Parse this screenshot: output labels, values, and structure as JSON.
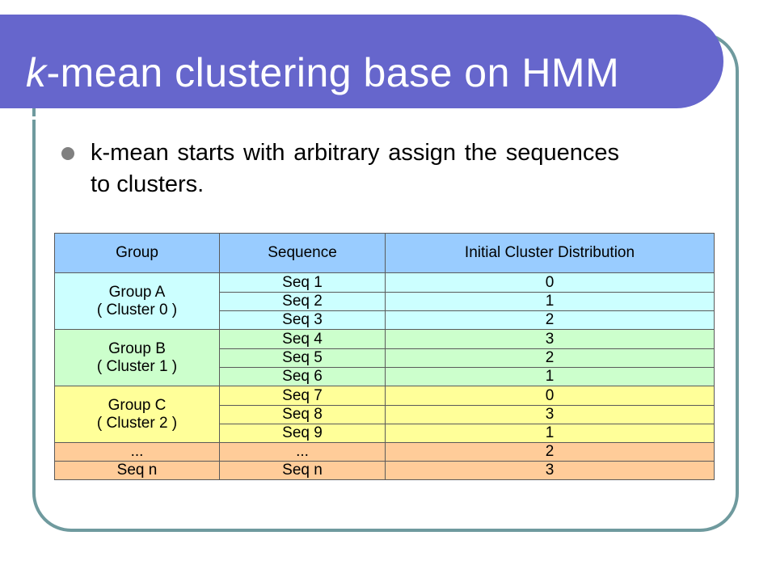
{
  "slide": {
    "title_italic": "k",
    "title_rest": "-mean clustering base on HMM",
    "bullet": "k-mean starts with arbitrary assign the sequences to clusters."
  },
  "table": {
    "headers": [
      "Group",
      "Sequence",
      "Initial Cluster Distribution"
    ],
    "groups": [
      {
        "line1": "Group A",
        "line2": "( Cluster 0 )",
        "color": "#ccffff",
        "rows": [
          {
            "seq": "Seq 1",
            "dist": "0"
          },
          {
            "seq": "Seq 2",
            "dist": "1"
          },
          {
            "seq": "Seq 3",
            "dist": "2"
          }
        ]
      },
      {
        "line1": "Group B",
        "line2": "( Cluster 1 )",
        "color": "#ccffcc",
        "rows": [
          {
            "seq": "Seq 4",
            "dist": "3"
          },
          {
            "seq": "Seq 5",
            "dist": "2"
          },
          {
            "seq": "Seq 6",
            "dist": "1"
          }
        ]
      },
      {
        "line1": "Group C",
        "line2": "( Cluster 2 )",
        "color": "#ffff99",
        "rows": [
          {
            "seq": "Seq 7",
            "dist": "0"
          },
          {
            "seq": "Seq 8",
            "dist": "3"
          },
          {
            "seq": "Seq 9",
            "dist": "1"
          }
        ]
      }
    ],
    "extra_rows": [
      {
        "group": "...",
        "seq": "...",
        "dist": "2"
      },
      {
        "group": "Seq n",
        "seq": "Seq n",
        "dist": "3"
      }
    ],
    "colors": {
      "header": "#99ccff",
      "extra": "#ffcc99"
    }
  }
}
